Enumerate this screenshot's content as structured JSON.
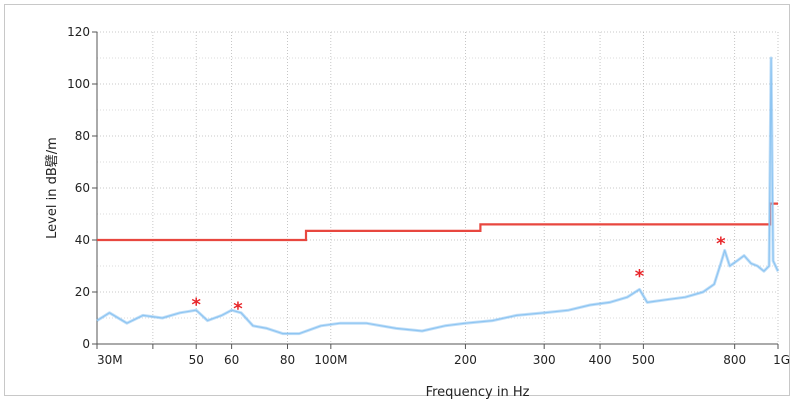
{
  "chart_data": {
    "type": "line",
    "xlabel": "Frequency in Hz",
    "ylabel": "Level in dB礕/m",
    "x_scale": "log",
    "xlim": [
      30000000,
      1000000000
    ],
    "ylim": [
      0,
      120
    ],
    "grid": true,
    "y_ticks": [
      0,
      20,
      40,
      60,
      80,
      100,
      120
    ],
    "x_ticks": [
      {
        "value": 30000000,
        "label": "30M"
      },
      {
        "value": 40000000,
        "label": ""
      },
      {
        "value": 50000000,
        "label": "50"
      },
      {
        "value": 60000000,
        "label": "60"
      },
      {
        "value": 80000000,
        "label": "80"
      },
      {
        "value": 100000000,
        "label": "100M"
      },
      {
        "value": 200000000,
        "label": "200"
      },
      {
        "value": 300000000,
        "label": "300"
      },
      {
        "value": 400000000,
        "label": "400"
      },
      {
        "value": 500000000,
        "label": "500"
      },
      {
        "value": 800000000,
        "label": "800"
      },
      {
        "value": 1000000000,
        "label": "1G"
      }
    ],
    "series": [
      {
        "kind": "limit",
        "color": "#e8473f",
        "points": [
          [
            30000000,
            40
          ],
          [
            88000000,
            40
          ],
          [
            88000000,
            43.5
          ],
          [
            216000000,
            43.5
          ],
          [
            216000000,
            46
          ],
          [
            960000000,
            46
          ],
          [
            960000000,
            54
          ],
          [
            1000000000,
            54
          ]
        ]
      },
      {
        "kind": "measurement",
        "color": "#8ec5f2",
        "points": [
          [
            30000000,
            9
          ],
          [
            32000000,
            12
          ],
          [
            35000000,
            8
          ],
          [
            38000000,
            11
          ],
          [
            42000000,
            10
          ],
          [
            46000000,
            12
          ],
          [
            50000000,
            13
          ],
          [
            53000000,
            9
          ],
          [
            57000000,
            11
          ],
          [
            60000000,
            13
          ],
          [
            63000000,
            12
          ],
          [
            67000000,
            7
          ],
          [
            72000000,
            6
          ],
          [
            78000000,
            4
          ],
          [
            85000000,
            4
          ],
          [
            95000000,
            7
          ],
          [
            105000000,
            8
          ],
          [
            120000000,
            8
          ],
          [
            140000000,
            6
          ],
          [
            160000000,
            5
          ],
          [
            180000000,
            7
          ],
          [
            200000000,
            8
          ],
          [
            230000000,
            9
          ],
          [
            260000000,
            11
          ],
          [
            300000000,
            12
          ],
          [
            340000000,
            13
          ],
          [
            380000000,
            15
          ],
          [
            420000000,
            16
          ],
          [
            460000000,
            18
          ],
          [
            490000000,
            21
          ],
          [
            510000000,
            16
          ],
          [
            560000000,
            17
          ],
          [
            620000000,
            18
          ],
          [
            680000000,
            20
          ],
          [
            720000000,
            23
          ],
          [
            745000000,
            31
          ],
          [
            760000000,
            36
          ],
          [
            780000000,
            30
          ],
          [
            810000000,
            32
          ],
          [
            840000000,
            34
          ],
          [
            870000000,
            31
          ],
          [
            900000000,
            30
          ],
          [
            930000000,
            28
          ],
          [
            955000000,
            30
          ],
          [
            965000000,
            110
          ],
          [
            975000000,
            32
          ],
          [
            1000000000,
            28
          ]
        ]
      },
      {
        "kind": "peaks",
        "color": "#e8262a",
        "points": [
          [
            50000000,
            16
          ],
          [
            62000000,
            14.5
          ],
          [
            490000000,
            27
          ],
          [
            745000000,
            39.5
          ]
        ]
      }
    ]
  }
}
